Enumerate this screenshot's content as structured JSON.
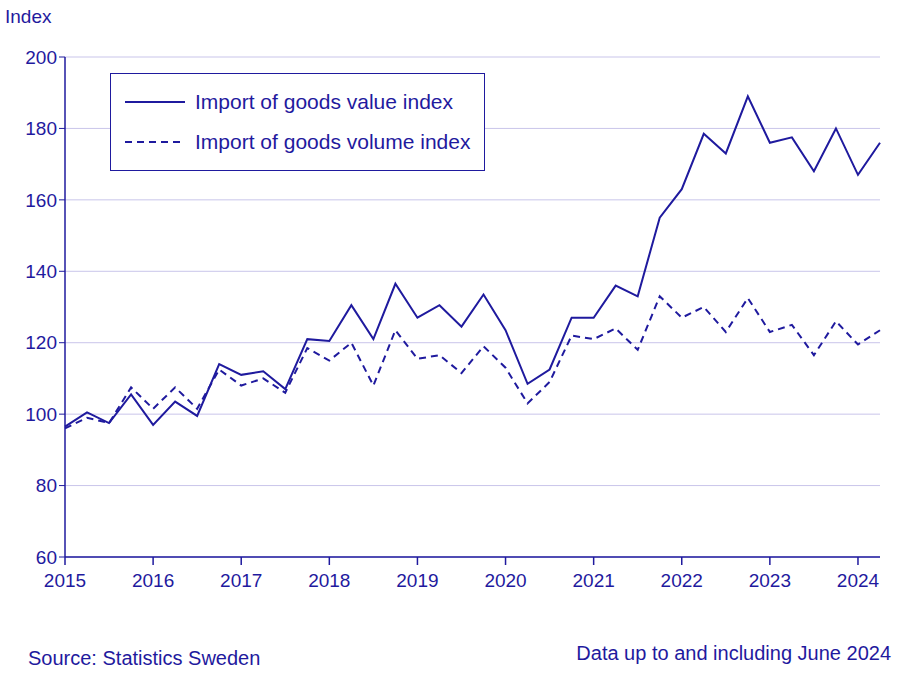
{
  "chart_data": {
    "type": "line",
    "y_label": "Index",
    "annotations": [
      "Source: Statistics Sweden",
      "Data up to and including June 2024"
    ],
    "categories": [
      "2015",
      null,
      null,
      null,
      "2016",
      null,
      null,
      null,
      "2017",
      null,
      null,
      null,
      "2018",
      null,
      null,
      null,
      "2019",
      null,
      null,
      null,
      "2020",
      null,
      null,
      null,
      "2021",
      null,
      null,
      null,
      "2022",
      null,
      null,
      null,
      "2023",
      null,
      null,
      null,
      "2024",
      null
    ],
    "series": [
      {
        "name": "Import of goods value index",
        "color": "#1f1a9e",
        "line_style": "solid",
        "values": [
          96.5,
          100.5,
          97.5,
          105.5,
          97,
          103.5,
          99.5,
          114,
          111,
          112,
          107,
          121,
          120.5,
          130.5,
          121,
          136.5,
          127,
          130.5,
          124.5,
          133.5,
          123.5,
          108.5,
          112.5,
          127,
          127,
          136,
          133,
          155,
          163,
          178.5,
          173,
          189,
          176,
          177.5,
          168,
          180,
          167,
          176
        ]
      },
      {
        "name": "Import of goods volume index",
        "color": "#1f1a9e",
        "line_style": "dashed",
        "values": [
          96,
          99,
          97.5,
          107.5,
          101.5,
          107.5,
          101.5,
          112.5,
          108,
          110,
          106,
          118.5,
          115,
          120,
          108,
          123.5,
          115.5,
          116.5,
          111.5,
          119,
          113,
          103,
          109,
          122,
          121,
          124,
          118,
          133,
          127,
          130,
          123,
          132.5,
          123,
          125,
          116.5,
          126,
          119.5,
          123.5
        ]
      }
    ],
    "ylim": [
      60,
      200
    ],
    "yticks": [
      60,
      80,
      100,
      120,
      140,
      160,
      180,
      200
    ],
    "grid": true,
    "legend": "upper left"
  }
}
